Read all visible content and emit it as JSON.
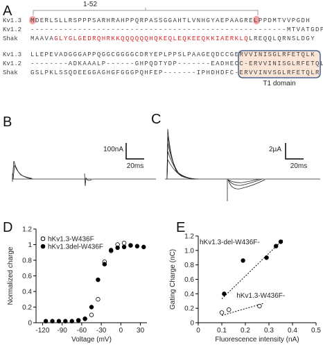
{
  "panels": {
    "a": "A",
    "b": "B",
    "c": "C",
    "d": "D",
    "e": "E"
  },
  "alignment": {
    "range_label": "1-52",
    "domain_label": "T1 domain",
    "rows": [
      [
        {
          "name": "Kv1.3",
          "segments": [
            "MDERLSLLRSPPPSARHRAHPPQRPASSGGAHTLVNHGYAEPAAGRELPPDMTVVPGDH"
          ]
        },
        {
          "name": "Kv1.2",
          "segments": [
            "------------------------------------------------------MTVATGDP"
          ]
        },
        {
          "name": "Shak",
          "segments": [
            "MAAVA",
            "GLYGLGEDRQHRKKQQQQQQHQKEQLEQKEEQKKIAERKLQ",
            "LREQQLQRNSLDGY"
          ]
        }
      ],
      [
        {
          "name": "Kv1.3",
          "segments": [
            "LLEPEVADGGGAPPQGGCGGGGCDRYEPLPPSLPAAGEQDCCGERVVINISGLRFETQLK"
          ]
        },
        {
          "name": "Kv1.2",
          "segments": [
            "--------ADKAAALP------GHPQDTYDP-------EADHECC-ERVVINISGLRFETQLK"
          ]
        },
        {
          "name": "Shak",
          "segments": [
            "GSLPKLSSQDEEGGAGHGFGGGPQHFEP-------IPHDHDFC-ERVVINVSGLRFETQLR"
          ]
        }
      ]
    ]
  },
  "traces": {
    "b": {
      "current_scale": "100nA",
      "time_scale": "20ms"
    },
    "c": {
      "current_scale": "2µA",
      "time_scale": "20ms"
    }
  },
  "chart_data": [
    {
      "type": "scatter",
      "x_label": "Voltage (mV)",
      "y_label": "Normalized charge",
      "xlim": [
        -130,
        40
      ],
      "ylim": [
        0,
        1.2
      ],
      "xticks": [
        -120,
        -90,
        -60,
        -30,
        0,
        30
      ],
      "yticks": [
        0,
        0.2,
        0.4,
        0.6,
        0.8,
        1,
        1.2
      ],
      "legend": "top-left",
      "series": [
        {
          "name": "hKv1.3-W436F",
          "color": "#000000",
          "marker": "open",
          "x": [
            -65,
            -55,
            -45,
            -35,
            -25,
            -15,
            -5,
            5,
            15
          ],
          "values": [
            0.03,
            0.05,
            0.1,
            0.3,
            0.78,
            0.92,
            1.0,
            1.02,
            0.99
          ]
        },
        {
          "name": "hKv1.3del-W436F",
          "color": "#000000",
          "marker": "filled",
          "x": [
            -115,
            -105,
            -95,
            -85,
            -75,
            -65,
            -55,
            -45,
            -35,
            -25,
            -15,
            -5,
            5,
            15,
            25,
            35
          ],
          "values": [
            0.02,
            0.02,
            0.02,
            0.02,
            0.02,
            0.03,
            0.05,
            0.2,
            0.55,
            0.75,
            0.93,
            0.96,
            0.97,
            0.99,
            0.98,
            0.97
          ]
        }
      ]
    },
    {
      "type": "scatter",
      "x_label": "Fluorescence intensity (nA)",
      "y_label": "Gating Charge (nC)",
      "xlim": [
        0,
        0.5
      ],
      "ylim": [
        0,
        1.2
      ],
      "xticks": [
        0,
        0.1,
        0.2,
        0.3,
        0.4,
        0.5
      ],
      "yticks": [
        0,
        0.2,
        0.4,
        0.6,
        0.8,
        {
          "value": 1,
          "label": "1.0"
        },
        1.2
      ],
      "legend": "inline",
      "series": [
        {
          "name": "hKv1.3-del-W436F-",
          "color": "#000000",
          "marker": "filled",
          "x": [
            0.11,
            0.19,
            0.29,
            0.33,
            0.35
          ],
          "values": [
            0.4,
            0.86,
            0.9,
            1.06,
            1.12
          ],
          "fit_x": [
            0.1,
            0.36
          ],
          "fit_y": [
            0.33,
            1.15
          ]
        },
        {
          "name": "hKv1.3-W436F-",
          "color": "#000000",
          "marker": "open",
          "x": [
            0.1,
            0.13,
            0.26
          ],
          "values": [
            0.14,
            0.18,
            0.23
          ],
          "fit_x": [
            0.1,
            0.28
          ],
          "fit_y": [
            0.1,
            0.27
          ]
        }
      ]
    }
  ]
}
